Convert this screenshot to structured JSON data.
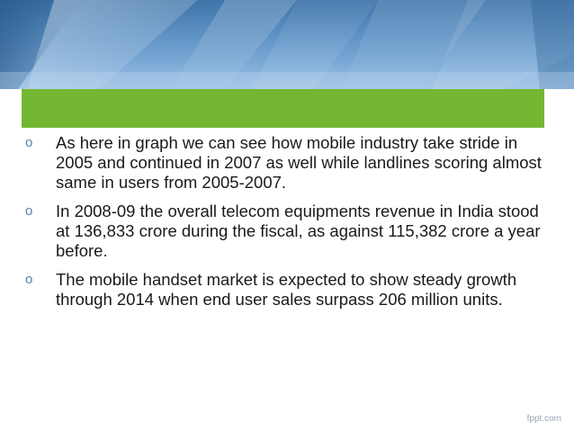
{
  "slide": {
    "title": "",
    "bullets": [
      {
        "marker": "o",
        "text": " As here in graph we can see how mobile industry take stride in 2005 and continued in 2007 as well while landlines scoring almost same in users from 2005-2007."
      },
      {
        "marker": "o",
        "text": " In 2008-09 the overall telecom equipments revenue in India stood at 136,833 crore during the fiscal, as against 115,382 crore a year before."
      },
      {
        "marker": "o",
        "text": " The mobile handset market is expected to show steady growth through 2014 when end user sales surpass 206 million units."
      }
    ],
    "footer_brand": "fppt.com"
  },
  "colors": {
    "banner_blue": "#5b8fc2",
    "title_bar_green": "#74b732",
    "body_text": "#1a1a1a",
    "bullet_marker": "#5b7fae"
  }
}
